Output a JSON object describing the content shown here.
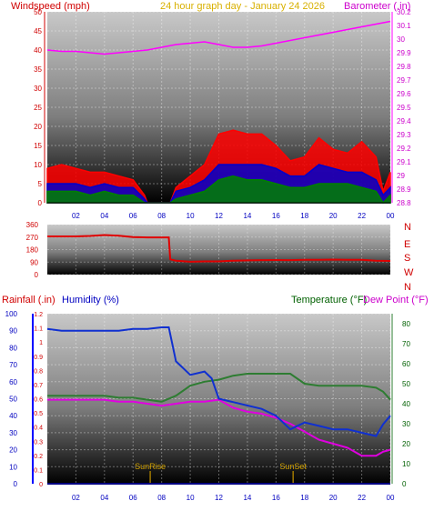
{
  "page": {
    "title": "24 hour graph day - January 24 2026"
  },
  "colors": {
    "wind_gust": "#ff0000",
    "wind_avg": "#0000cc",
    "wind_speed": "#008000",
    "barometer": "#ff00ff",
    "wind_dir": "#e00000",
    "rainfall": "#0000ff",
    "humidity": "#1030d0",
    "temperature": "#2e7d32",
    "dew_point": "#e000e0",
    "sun_marker": "#a07800",
    "label_red": "#d00000",
    "label_blue": "#0000c0",
    "label_magenta": "#cc00cc",
    "label_green": "#006000"
  },
  "chart_data": [
    {
      "type": "line",
      "title": "24 hour graph day - January 24 2026",
      "left_label": "Windspeed (mph)",
      "right_label": "Barometer (.in)",
      "x_ticks": [
        "02",
        "04",
        "06",
        "08",
        "10",
        "12",
        "14",
        "16",
        "18",
        "20",
        "22",
        "00"
      ],
      "x_hours": [
        2,
        4,
        6,
        8,
        10,
        12,
        14,
        16,
        18,
        20,
        22,
        24
      ],
      "ylim_left": [
        0,
        50
      ],
      "yticks_left": [
        "0",
        "5",
        "10",
        "15",
        "20",
        "25",
        "30",
        "35",
        "40",
        "45",
        "50"
      ],
      "ylim_right": [
        28.8,
        30.2
      ],
      "yticks_right": [
        "28.8",
        "28.9",
        "29",
        "29.1",
        "29.2",
        "29.3",
        "29.4",
        "29.5",
        "29.6",
        "29.7",
        "29.8",
        "29.9",
        "30",
        "30.1",
        "30.2"
      ],
      "series": [
        {
          "key": "wind_gust",
          "axis": "left",
          "x": [
            0,
            1,
            2,
            3,
            4,
            5,
            6,
            6.8,
            7,
            8,
            8.6,
            9,
            10,
            11,
            12,
            13,
            14,
            15,
            16,
            17,
            18,
            19,
            20,
            21,
            22,
            23,
            23.5,
            24
          ],
          "y": [
            9,
            10,
            9,
            8,
            8,
            7,
            6,
            2,
            0,
            0,
            0,
            4,
            7,
            10,
            18,
            19,
            18,
            18,
            15,
            11,
            12,
            17,
            14,
            13,
            16,
            12,
            3,
            8
          ]
        },
        {
          "key": "wind_avg",
          "axis": "left",
          "x": [
            0,
            1,
            2,
            3,
            4,
            5,
            6,
            6.8,
            7,
            8,
            8.6,
            9,
            10,
            11,
            12,
            13,
            14,
            15,
            16,
            17,
            18,
            19,
            20,
            21,
            22,
            23,
            23.5,
            24
          ],
          "y": [
            5,
            5,
            5,
            4,
            5,
            4,
            4,
            1,
            0,
            0,
            0,
            3,
            4,
            6,
            10,
            10,
            10,
            10,
            9,
            7,
            7,
            10,
            9,
            8,
            8,
            6,
            2,
            4
          ]
        },
        {
          "key": "wind_speed",
          "axis": "left",
          "x": [
            0,
            1,
            2,
            3,
            4,
            5,
            6,
            6.8,
            7,
            8,
            8.6,
            9,
            10,
            11,
            12,
            13,
            14,
            15,
            16,
            17,
            18,
            19,
            20,
            21,
            22,
            23,
            23.5,
            24
          ],
          "y": [
            3,
            3,
            3,
            2,
            3,
            2,
            2,
            0,
            0,
            0,
            0,
            1,
            2,
            3,
            6,
            7,
            6,
            6,
            5,
            4,
            4,
            5,
            5,
            5,
            4,
            3,
            0,
            2
          ]
        },
        {
          "key": "barometer",
          "axis": "right",
          "x": [
            0,
            1,
            2,
            3,
            4,
            5,
            6,
            7,
            8,
            9,
            10,
            11,
            12,
            13,
            14,
            15,
            16,
            17,
            18,
            19,
            20,
            21,
            22,
            23,
            24
          ],
          "y": [
            29.92,
            29.91,
            29.91,
            29.9,
            29.89,
            29.9,
            29.91,
            29.92,
            29.94,
            29.96,
            29.97,
            29.98,
            29.96,
            29.94,
            29.94,
            29.95,
            29.97,
            29.99,
            30.01,
            30.03,
            30.05,
            30.07,
            30.09,
            30.11,
            30.13
          ]
        }
      ]
    },
    {
      "type": "line",
      "title": "",
      "y_ticks": [
        "0",
        "90",
        "180",
        "270",
        "360"
      ],
      "ylim": [
        0,
        360
      ],
      "compass_labels": [
        "N",
        "W",
        "S",
        "E",
        "N"
      ],
      "x_ticks": [],
      "series": [
        {
          "key": "wind_dir",
          "x": [
            0,
            1,
            2,
            3,
            4,
            5,
            6,
            7,
            8,
            8.5,
            8.6,
            9,
            10,
            11,
            12,
            13,
            14,
            15,
            16,
            17,
            18,
            19,
            20,
            21,
            22,
            23,
            24
          ],
          "y": [
            275,
            275,
            275,
            278,
            285,
            280,
            270,
            268,
            268,
            268,
            110,
            100,
            92,
            95,
            95,
            100,
            102,
            104,
            105,
            104,
            106,
            106,
            108,
            107,
            106,
            100,
            98
          ]
        }
      ]
    },
    {
      "type": "line",
      "left_label_1": "Rainfall (.in)",
      "left_label_2": "Humidity (%)",
      "right_label_1": "Temperature (°F)",
      "right_label_2": "Dew Point (°F)",
      "x_ticks": [
        "02",
        "04",
        "06",
        "08",
        "10",
        "12",
        "14",
        "16",
        "18",
        "20",
        "22",
        "00"
      ],
      "x_hours": [
        2,
        4,
        6,
        8,
        10,
        12,
        14,
        16,
        18,
        20,
        22,
        24
      ],
      "ylim_humidity": [
        0,
        100
      ],
      "yticks_humidity": [
        "0",
        "10",
        "20",
        "30",
        "40",
        "50",
        "60",
        "70",
        "80",
        "90",
        "100"
      ],
      "ylim_rain": [
        0,
        1.2
      ],
      "yticks_rain": [
        "0",
        "0.1",
        "0.2",
        "0.3",
        "0.4",
        "0.5",
        "0.6",
        "0.7",
        "0.8",
        "0.9",
        "1",
        "1.1",
        "1.2"
      ],
      "ylim_temp": [
        0,
        85
      ],
      "yticks_temp": [
        "0",
        "10",
        "20",
        "30",
        "40",
        "50",
        "60",
        "70",
        "80"
      ],
      "sunrise_label": "SunRise",
      "sunset_label": "SunSet",
      "sunrise_hour": 7.2,
      "sunset_hour": 17.2,
      "series": [
        {
          "key": "humidity",
          "axis": "humidity",
          "x": [
            0,
            1,
            2,
            3,
            4,
            5,
            6,
            7,
            8,
            8.5,
            9,
            10,
            11,
            11.5,
            12,
            13,
            14,
            15,
            16,
            17,
            18,
            19,
            20,
            21,
            22,
            23,
            23.5,
            24
          ],
          "y": [
            91,
            90,
            90,
            90,
            90,
            90,
            91,
            91,
            92,
            92,
            72,
            64,
            66,
            62,
            50,
            48,
            46,
            44,
            40,
            32,
            36,
            34,
            32,
            32,
            30,
            28,
            35,
            40
          ]
        },
        {
          "key": "temperature",
          "axis": "temp",
          "x": [
            0,
            1,
            2,
            3,
            4,
            5,
            6,
            7,
            8,
            9,
            10,
            11,
            12,
            13,
            14,
            15,
            16,
            17,
            18,
            19,
            20,
            21,
            22,
            23,
            23.5,
            24
          ],
          "y": [
            44,
            44,
            44,
            44,
            44,
            43,
            43,
            42,
            41,
            44,
            49,
            51,
            52,
            54,
            55,
            55,
            55,
            55,
            50,
            49,
            49,
            49,
            49,
            48,
            46,
            42
          ]
        },
        {
          "key": "dew_point",
          "axis": "temp",
          "x": [
            0,
            1,
            2,
            3,
            4,
            5,
            6,
            7,
            8,
            9,
            10,
            11,
            12,
            13,
            14,
            15,
            16,
            17,
            18,
            19,
            20,
            21,
            22,
            23,
            23.5,
            24
          ],
          "y": [
            42,
            42,
            42,
            42,
            42,
            41,
            41,
            40,
            39,
            40,
            41,
            41,
            42,
            38,
            36,
            35,
            33,
            30,
            26,
            22,
            20,
            18,
            14,
            14,
            16,
            17
          ]
        },
        {
          "key": "rainfall",
          "axis": "rain",
          "x": [
            0,
            24
          ],
          "y": [
            0,
            0
          ]
        }
      ]
    }
  ]
}
